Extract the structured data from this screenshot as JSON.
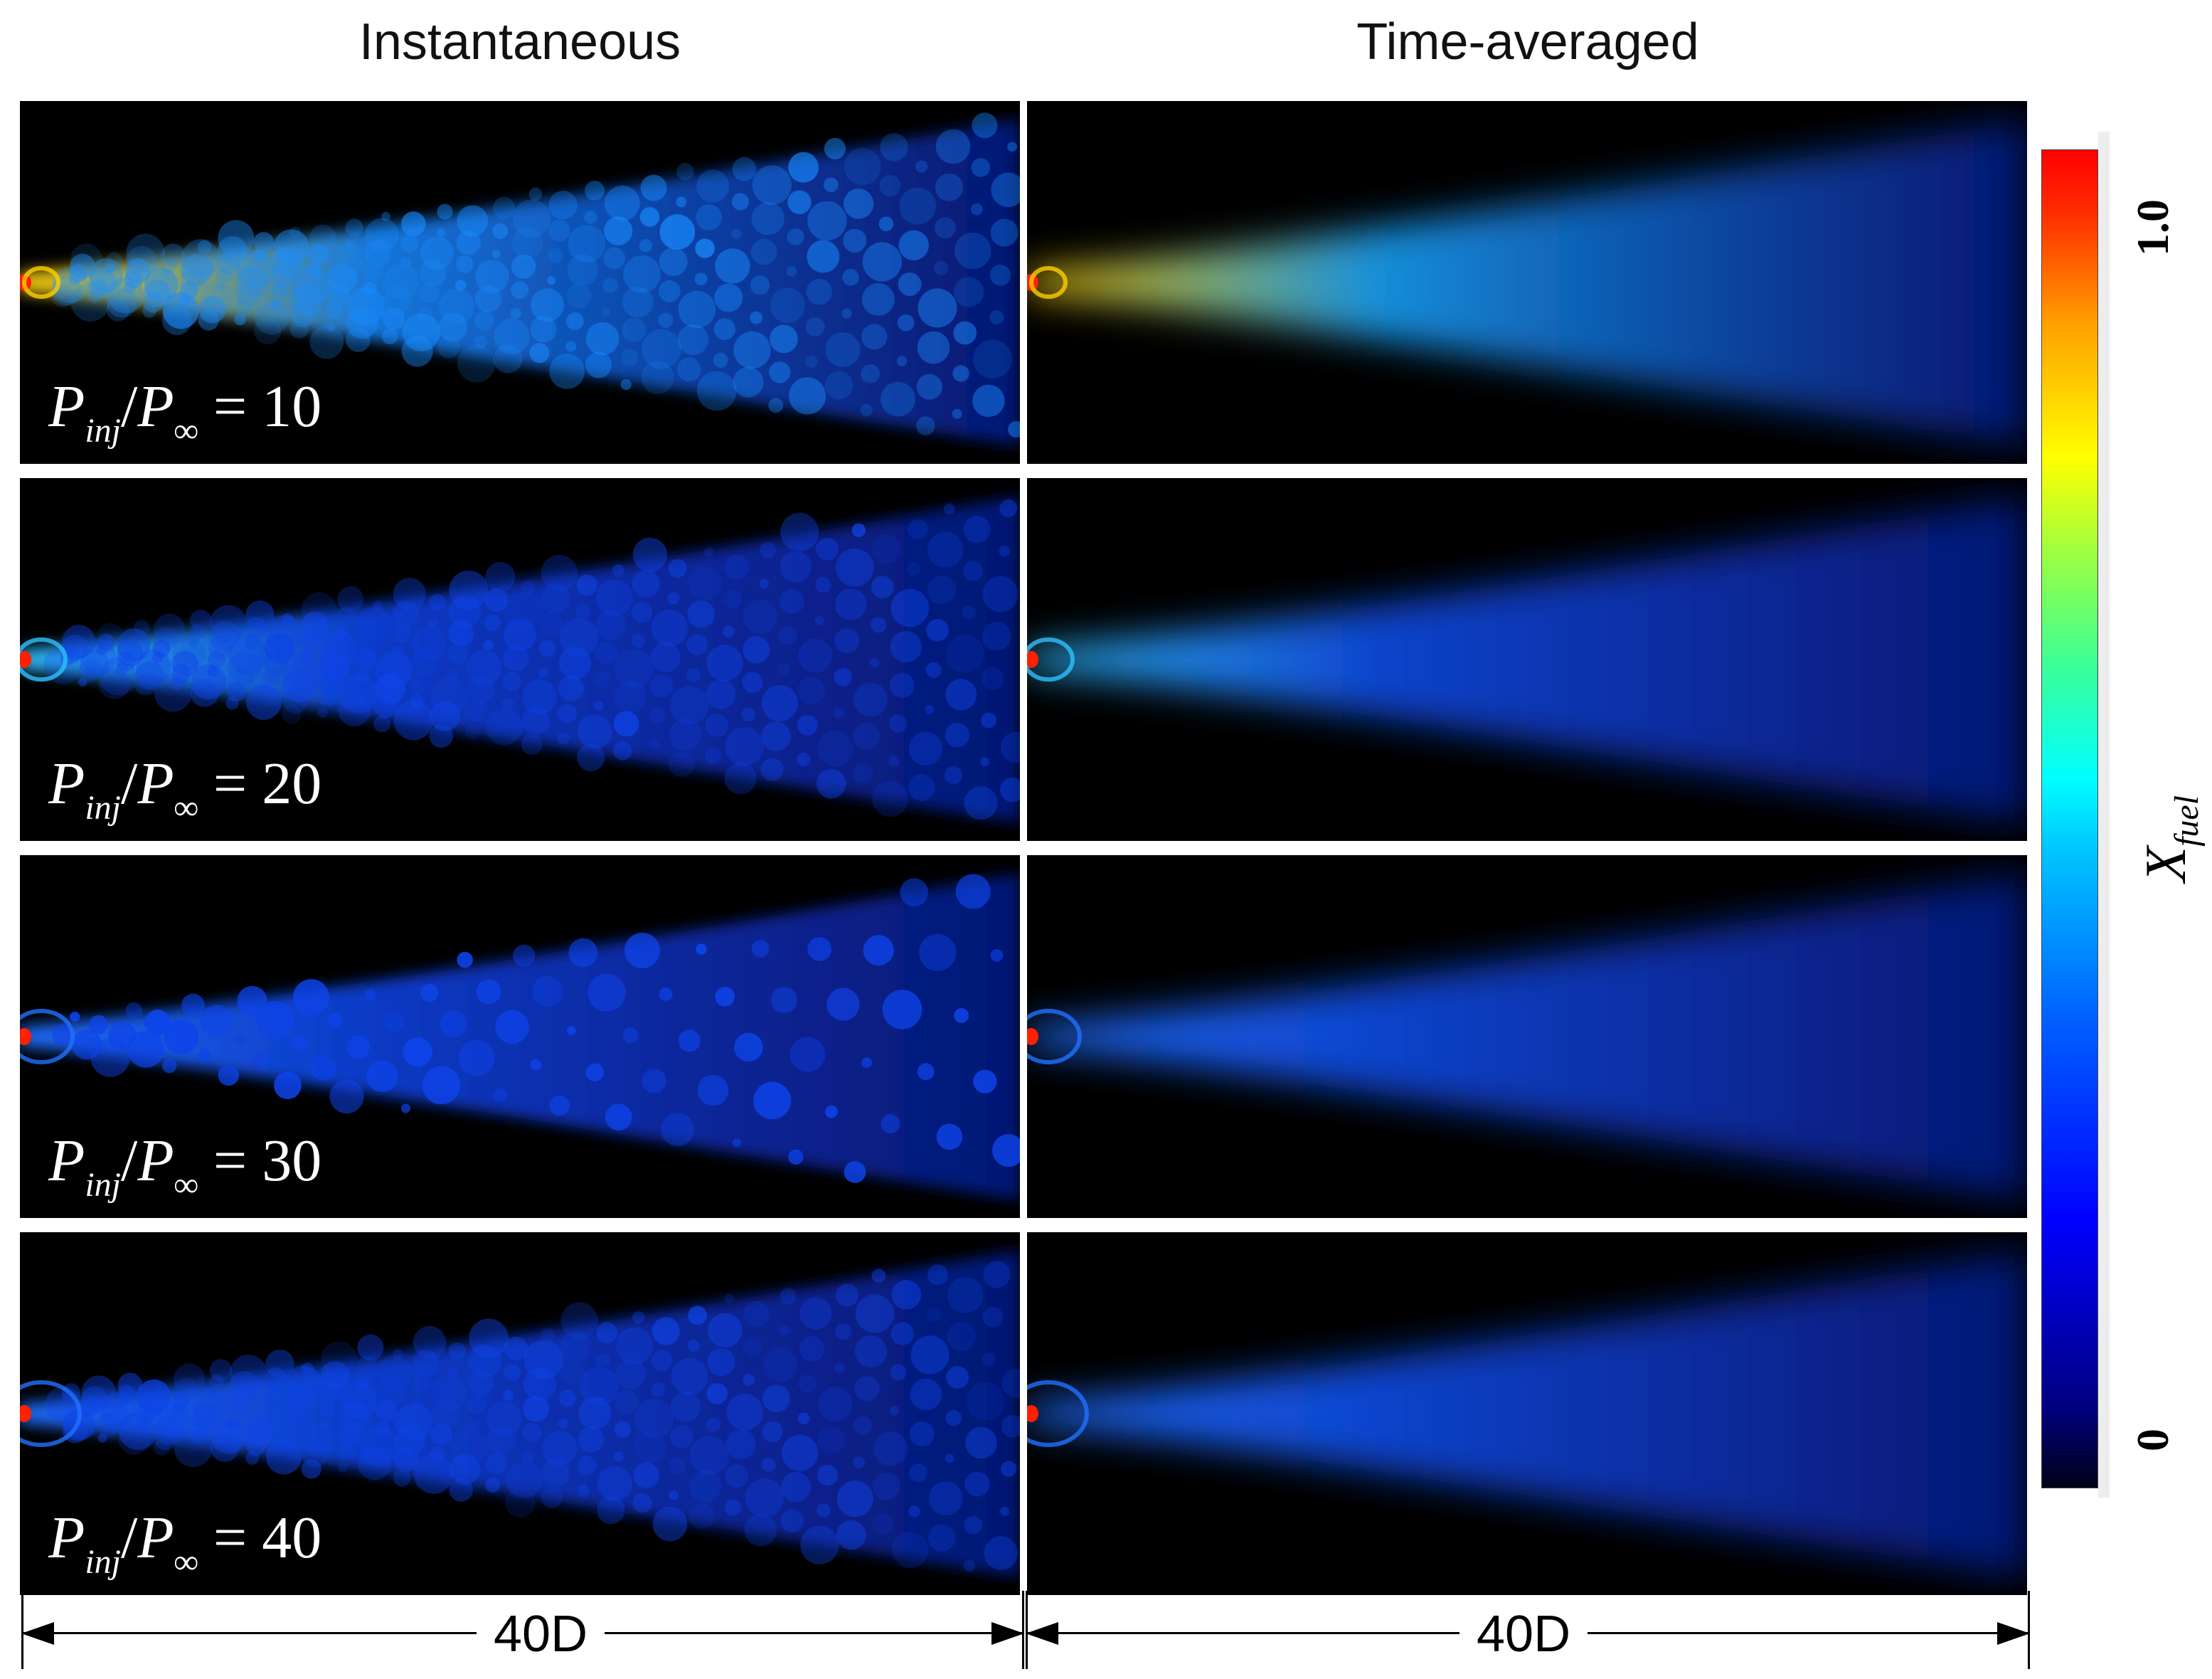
{
  "columns": {
    "left_title": "Instantaneous",
    "right_title": "Time-averaged"
  },
  "rows": [
    {
      "ratio_label_main": "P",
      "ratio_sub_inj": "inj",
      "ratio_slash": "/",
      "ratio_main2": "P",
      "ratio_sub_inf": "∞",
      "ratio_eq": " = ",
      "ratio_value": "10",
      "core_level": 1.0
    },
    {
      "ratio_label_main": "P",
      "ratio_sub_inj": "inj",
      "ratio_slash": "/",
      "ratio_main2": "P",
      "ratio_sub_inf": "∞",
      "ratio_eq": " = ",
      "ratio_value": "20",
      "core_level": 0.55
    },
    {
      "ratio_label_main": "P",
      "ratio_sub_inj": "inj",
      "ratio_slash": "/",
      "ratio_main2": "P",
      "ratio_sub_inf": "∞",
      "ratio_eq": " = ",
      "ratio_value": "30",
      "core_level": 0.42
    },
    {
      "ratio_label_main": "P",
      "ratio_sub_inj": "inj",
      "ratio_slash": "/",
      "ratio_main2": "P",
      "ratio_sub_inf": "∞",
      "ratio_eq": " = ",
      "ratio_value": "40",
      "core_level": 0.35
    }
  ],
  "scalebar": {
    "left_label": "40D",
    "right_label": "40D"
  },
  "colorbar": {
    "label_main": "X",
    "label_sub": "fuel",
    "max_label": "1.0",
    "min_label": "0",
    "colors": {
      "low": "#000018",
      "mid": "#00ffff",
      "high": "#ff0000"
    }
  }
}
